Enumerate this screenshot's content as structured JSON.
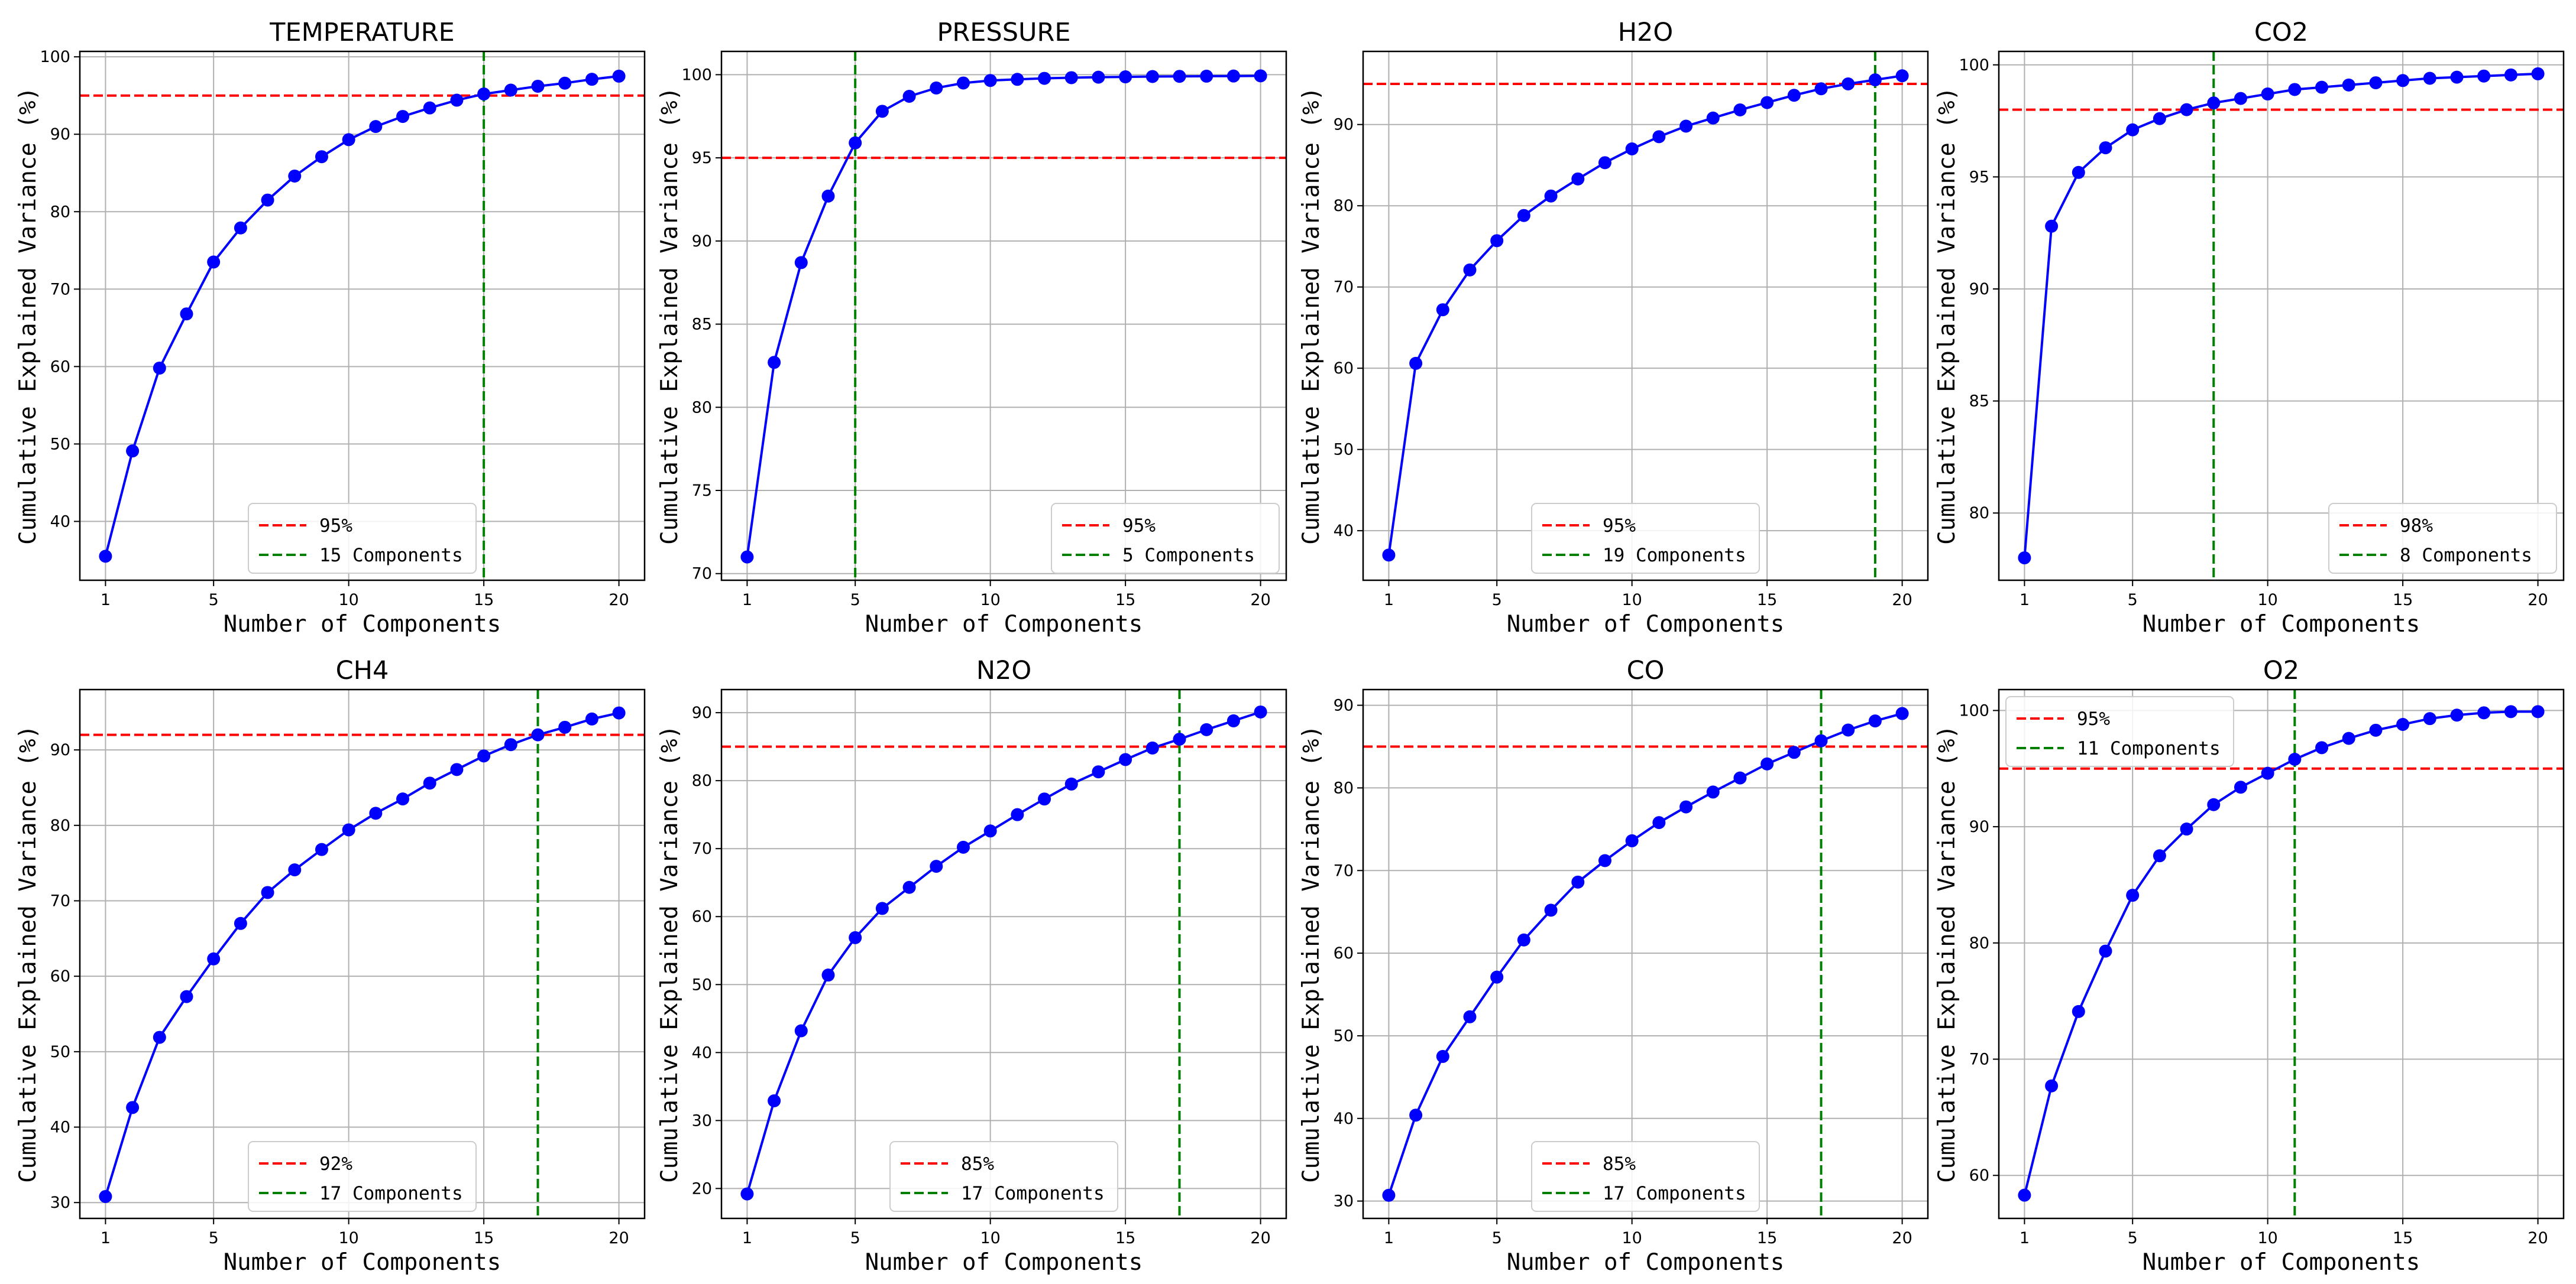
{
  "chart_data": [
    {
      "type": "line",
      "title": "TEMPERATURE",
      "xlabel": "Number of Components",
      "ylabel": "Cumulative Explained Variance (%)",
      "x": [
        1,
        2,
        3,
        4,
        5,
        6,
        7,
        8,
        9,
        10,
        11,
        12,
        13,
        14,
        15,
        16,
        17,
        18,
        19,
        20
      ],
      "values": [
        35.5,
        49.1,
        59.8,
        66.8,
        73.5,
        77.9,
        81.5,
        84.6,
        87.1,
        89.3,
        91.0,
        92.3,
        93.4,
        94.4,
        95.2,
        95.7,
        96.2,
        96.6,
        97.1,
        97.5
      ],
      "xlim": [
        0.05,
        20.95
      ],
      "ylim": [
        32.4,
        100.7
      ],
      "xticks": [
        1,
        5,
        10,
        15,
        20
      ],
      "yticks": [
        40,
        50,
        60,
        70,
        80,
        90,
        100
      ],
      "grid": true,
      "threshold": {
        "value": 95,
        "label": "95%",
        "color": "#ff0000"
      },
      "components": {
        "value": 15,
        "label": "15 Components",
        "color": "#008000"
      },
      "line_color": "#0000ff",
      "legend_position": "lower-center"
    },
    {
      "type": "line",
      "title": "PRESSURE",
      "xlabel": "Number of Components",
      "ylabel": "Cumulative Explained Variance (%)",
      "x": [
        1,
        2,
        3,
        4,
        5,
        6,
        7,
        8,
        9,
        10,
        11,
        12,
        13,
        14,
        15,
        16,
        17,
        18,
        19,
        20
      ],
      "values": [
        71.0,
        82.7,
        88.7,
        92.7,
        95.9,
        97.8,
        98.7,
        99.2,
        99.5,
        99.65,
        99.72,
        99.78,
        99.82,
        99.85,
        99.87,
        99.89,
        99.9,
        99.91,
        99.92,
        99.93
      ],
      "xlim": [
        0.05,
        20.95
      ],
      "ylim": [
        69.6,
        101.4
      ],
      "xticks": [
        1,
        5,
        10,
        15,
        20
      ],
      "yticks": [
        70,
        75,
        80,
        85,
        90,
        95,
        100
      ],
      "grid": true,
      "threshold": {
        "value": 95,
        "label": "95%",
        "color": "#ff0000"
      },
      "components": {
        "value": 5,
        "label": "5 Components",
        "color": "#008000"
      },
      "line_color": "#0000ff",
      "legend_position": "lower-right"
    },
    {
      "type": "line",
      "title": "H2O",
      "xlabel": "Number of Components",
      "ylabel": "Cumulative Explained Variance (%)",
      "x": [
        1,
        2,
        3,
        4,
        5,
        6,
        7,
        8,
        9,
        10,
        11,
        12,
        13,
        14,
        15,
        16,
        17,
        18,
        19,
        20
      ],
      "values": [
        37.0,
        60.6,
        67.2,
        72.1,
        75.7,
        78.8,
        81.2,
        83.3,
        85.3,
        87.0,
        88.5,
        89.8,
        90.8,
        91.8,
        92.7,
        93.6,
        94.4,
        95.0,
        95.5,
        96.0
      ],
      "xlim": [
        0.05,
        20.95
      ],
      "ylim": [
        33.9,
        99.0
      ],
      "xticks": [
        1,
        5,
        10,
        15,
        20
      ],
      "yticks": [
        40,
        50,
        60,
        70,
        80,
        90
      ],
      "grid": true,
      "threshold": {
        "value": 95,
        "label": "95%",
        "color": "#ff0000"
      },
      "components": {
        "value": 19,
        "label": "19 Components",
        "color": "#008000"
      },
      "line_color": "#0000ff",
      "legend_position": "lower-center"
    },
    {
      "type": "line",
      "title": "CO2",
      "xlabel": "Number of Components",
      "ylabel": "Cumulative Explained Variance (%)",
      "x": [
        1,
        2,
        3,
        4,
        5,
        6,
        7,
        8,
        9,
        10,
        11,
        12,
        13,
        14,
        15,
        16,
        17,
        18,
        19,
        20
      ],
      "values": [
        78.0,
        92.8,
        95.2,
        96.3,
        97.1,
        97.6,
        98.0,
        98.3,
        98.5,
        98.7,
        98.9,
        99.0,
        99.1,
        99.2,
        99.3,
        99.4,
        99.45,
        99.5,
        99.55,
        99.6
      ],
      "xlim": [
        0.05,
        20.95
      ],
      "ylim": [
        77.0,
        100.6
      ],
      "xticks": [
        1,
        5,
        10,
        15,
        20
      ],
      "yticks": [
        80,
        85,
        90,
        95,
        100
      ],
      "grid": true,
      "threshold": {
        "value": 98,
        "label": "98%",
        "color": "#ff0000"
      },
      "components": {
        "value": 8,
        "label": "8 Components",
        "color": "#008000"
      },
      "line_color": "#0000ff",
      "legend_position": "lower-right"
    },
    {
      "type": "line",
      "title": "CH4",
      "xlabel": "Number of Components",
      "ylabel": "Cumulative Explained Variance (%)",
      "x": [
        1,
        2,
        3,
        4,
        5,
        6,
        7,
        8,
        9,
        10,
        11,
        12,
        13,
        14,
        15,
        16,
        17,
        18,
        19,
        20
      ],
      "values": [
        30.8,
        42.6,
        51.9,
        57.3,
        62.3,
        67.0,
        71.1,
        74.1,
        76.8,
        79.4,
        81.6,
        83.5,
        85.6,
        87.4,
        89.2,
        90.7,
        92.0,
        93.0,
        94.1,
        94.9
      ],
      "xlim": [
        0.05,
        20.95
      ],
      "ylim": [
        27.9,
        98.0
      ],
      "xticks": [
        1,
        5,
        10,
        15,
        20
      ],
      "yticks": [
        30,
        40,
        50,
        60,
        70,
        80,
        90
      ],
      "grid": true,
      "threshold": {
        "value": 92,
        "label": "92%",
        "color": "#ff0000"
      },
      "components": {
        "value": 17,
        "label": "17 Components",
        "color": "#008000"
      },
      "line_color": "#0000ff",
      "legend_position": "lower-center"
    },
    {
      "type": "line",
      "title": "N2O",
      "xlabel": "Number of Components",
      "ylabel": "Cumulative Explained Variance (%)",
      "x": [
        1,
        2,
        3,
        4,
        5,
        6,
        7,
        8,
        9,
        10,
        11,
        12,
        13,
        14,
        15,
        16,
        17,
        18,
        19,
        20
      ],
      "values": [
        19.2,
        32.9,
        43.2,
        51.4,
        56.9,
        61.2,
        64.3,
        67.4,
        70.2,
        72.6,
        75.0,
        77.3,
        79.5,
        81.3,
        83.1,
        84.8,
        86.1,
        87.5,
        88.8,
        90.1
      ],
      "xlim": [
        0.05,
        20.95
      ],
      "ylim": [
        15.6,
        93.4
      ],
      "xticks": [
        1,
        5,
        10,
        15,
        20
      ],
      "yticks": [
        20,
        30,
        40,
        50,
        60,
        70,
        80,
        90
      ],
      "grid": true,
      "threshold": {
        "value": 85,
        "label": "85%",
        "color": "#ff0000"
      },
      "components": {
        "value": 17,
        "label": "17 Components",
        "color": "#008000"
      },
      "line_color": "#0000ff",
      "legend_position": "lower-center"
    },
    {
      "type": "line",
      "title": "CO",
      "xlabel": "Number of Components",
      "ylabel": "Cumulative Explained Variance (%)",
      "x": [
        1,
        2,
        3,
        4,
        5,
        6,
        7,
        8,
        9,
        10,
        11,
        12,
        13,
        14,
        15,
        16,
        17,
        18,
        19,
        20
      ],
      "values": [
        30.7,
        40.4,
        47.5,
        52.3,
        57.1,
        61.6,
        65.2,
        68.6,
        71.2,
        73.6,
        75.8,
        77.7,
        79.5,
        81.2,
        82.9,
        84.3,
        85.7,
        87.0,
        88.1,
        89.0
      ],
      "xlim": [
        0.05,
        20.95
      ],
      "ylim": [
        27.9,
        91.9
      ],
      "xticks": [
        1,
        5,
        10,
        15,
        20
      ],
      "yticks": [
        30,
        40,
        50,
        60,
        70,
        80,
        90
      ],
      "grid": true,
      "threshold": {
        "value": 85,
        "label": "85%",
        "color": "#ff0000"
      },
      "components": {
        "value": 17,
        "label": "17 Components",
        "color": "#008000"
      },
      "line_color": "#0000ff",
      "legend_position": "lower-center"
    },
    {
      "type": "line",
      "title": "O2",
      "xlabel": "Number of Components",
      "ylabel": "Cumulative Explained Variance (%)",
      "x": [
        1,
        2,
        3,
        4,
        5,
        6,
        7,
        8,
        9,
        10,
        11,
        12,
        13,
        14,
        15,
        16,
        17,
        18,
        19,
        20
      ],
      "values": [
        58.3,
        67.7,
        74.1,
        79.3,
        84.1,
        87.5,
        89.8,
        91.9,
        93.4,
        94.6,
        95.8,
        96.8,
        97.6,
        98.3,
        98.8,
        99.3,
        99.6,
        99.8,
        99.9,
        99.9
      ],
      "xlim": [
        0.05,
        20.95
      ],
      "ylim": [
        56.3,
        101.8
      ],
      "xticks": [
        1,
        5,
        10,
        15,
        20
      ],
      "yticks": [
        60,
        70,
        80,
        90,
        100
      ],
      "grid": true,
      "threshold": {
        "value": 95,
        "label": "95%",
        "color": "#ff0000"
      },
      "components": {
        "value": 11,
        "label": "11 Components",
        "color": "#008000"
      },
      "line_color": "#0000ff",
      "legend_position": "upper-left"
    }
  ]
}
